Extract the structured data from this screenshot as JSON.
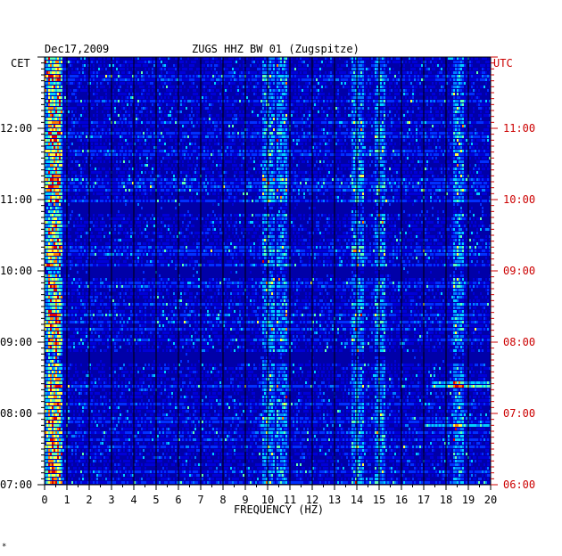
{
  "header": {
    "date": "Dec17,2009",
    "station": "ZUGS HHZ BW 01 (Zugspitze)",
    "left_tz": "CET",
    "right_tz": "UTC"
  },
  "footer_mark": "*",
  "colors": {
    "background": "#0000a8",
    "tick_left": "#000000",
    "tick_right": "#cc0000",
    "palette": [
      "#00006e",
      "#0000a8",
      "#0000d8",
      "#0030ff",
      "#0080ff",
      "#00d0ff",
      "#60ffb0",
      "#ffff40",
      "#ff8000",
      "#e00000"
    ]
  },
  "chart_data": {
    "type": "heatmap",
    "title": "ZUGS HHZ BW 01 (Zugspitze)",
    "xlabel": "FREQUENCY (HZ)",
    "ylabel": "",
    "xlim": [
      0,
      20
    ],
    "x_ticks": [
      "0",
      "1",
      "2",
      "3",
      "4",
      "5",
      "6",
      "7",
      "8",
      "9",
      "10",
      "11",
      "12",
      "13",
      "14",
      "15",
      "16",
      "17",
      "18",
      "19",
      "20"
    ],
    "y_ticks_left": [
      "12:00",
      "11:00",
      "10:00",
      "09:00",
      "08:00",
      "07:00"
    ],
    "y_ticks_right": [
      "11:00",
      "10:00",
      "09:00",
      "08:00",
      "07:00",
      "06:00"
    ],
    "ylim_cet_hours": [
      7.0,
      13.0
    ],
    "y_tick_hours_cet": [
      12,
      11,
      10,
      9,
      8,
      7
    ],
    "grid": true,
    "strong_bands_hz": [
      0.4,
      10.0,
      10.6,
      14.0,
      15.0,
      18.5
    ],
    "quiet_hours_cet": [
      10.0,
      10.9,
      8.8
    ]
  }
}
